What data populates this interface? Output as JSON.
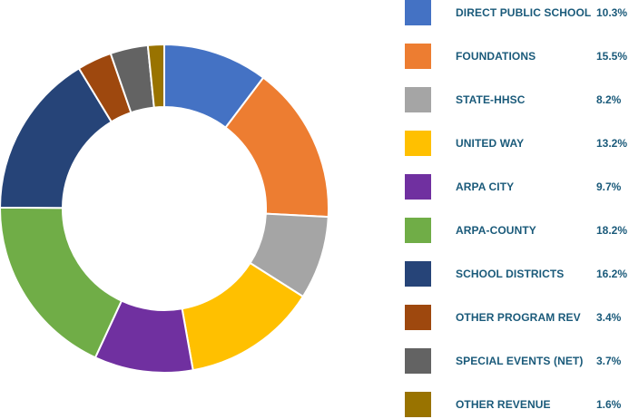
{
  "chart_data": {
    "type": "pie",
    "variant": "donut",
    "title": "",
    "legend_position": "right",
    "slices": [
      {
        "label": "DIRECT PUBLIC SCHOOL",
        "value": 10.3,
        "display": "10.3%",
        "color": "#4472C4"
      },
      {
        "label": "FOUNDATIONS",
        "value": 15.5,
        "display": "15.5%",
        "color": "#ED7D31"
      },
      {
        "label": "STATE-HHSC",
        "value": 8.2,
        "display": "8.2%",
        "color": "#A5A5A5"
      },
      {
        "label": "UNITED WAY",
        "value": 13.2,
        "display": "13.2%",
        "color": "#FFC000"
      },
      {
        "label": "ARPA CITY",
        "value": 9.7,
        "display": "9.7%",
        "color": "#7030A0"
      },
      {
        "label": "ARPA-COUNTY",
        "value": 18.2,
        "display": "18.2%",
        "color": "#70AD47"
      },
      {
        "label": "SCHOOL DISTRICTS",
        "value": 16.2,
        "display": "16.2%",
        "color": "#264478"
      },
      {
        "label": "OTHER PROGRAM REV",
        "value": 3.4,
        "display": "3.4%",
        "color": "#9E480E"
      },
      {
        "label": "SPECIAL EVENTS (NET)",
        "value": 3.7,
        "display": "3.7%",
        "color": "#636363"
      },
      {
        "label": "OTHER REVENUE",
        "value": 1.6,
        "display": "1.6%",
        "color": "#997300"
      }
    ]
  }
}
